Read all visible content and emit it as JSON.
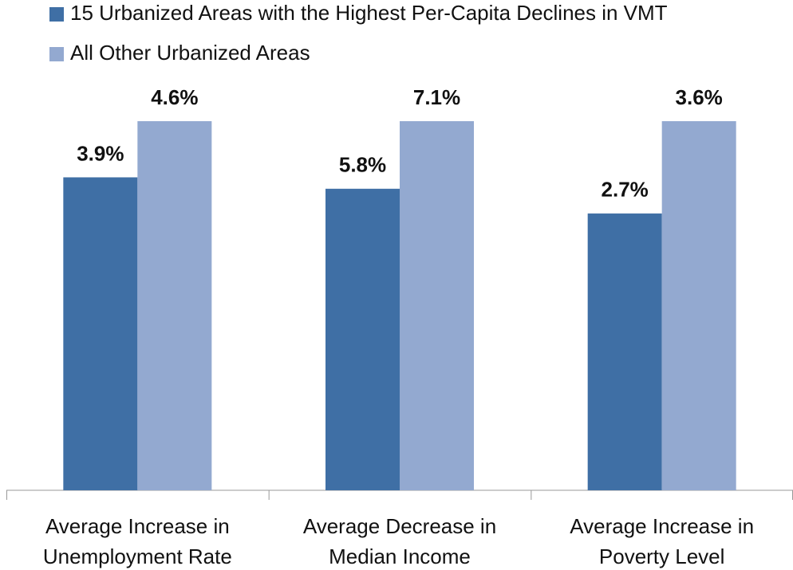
{
  "chart_data": {
    "type": "bar",
    "categories": [
      [
        "Average Increase in",
        "Unemployment Rate"
      ],
      [
        "Average Decrease in",
        "Median Income"
      ],
      [
        "Average Increase in",
        "Poverty Level"
      ]
    ],
    "series": [
      {
        "name": "15 Urbanized Areas with the Highest Per-Capita Declines in VMT",
        "color": "#3f6fa5",
        "values": [
          3.9,
          5.8,
          2.7
        ],
        "value_labels": [
          "3.9%",
          "5.8%",
          "2.7%"
        ]
      },
      {
        "name": "All Other Urbanized Areas",
        "color": "#93a9d0",
        "values": [
          4.6,
          7.1,
          3.6
        ],
        "value_labels": [
          "4.6%",
          "7.1%",
          "3.6%"
        ]
      }
    ],
    "legend": "top-left"
  }
}
